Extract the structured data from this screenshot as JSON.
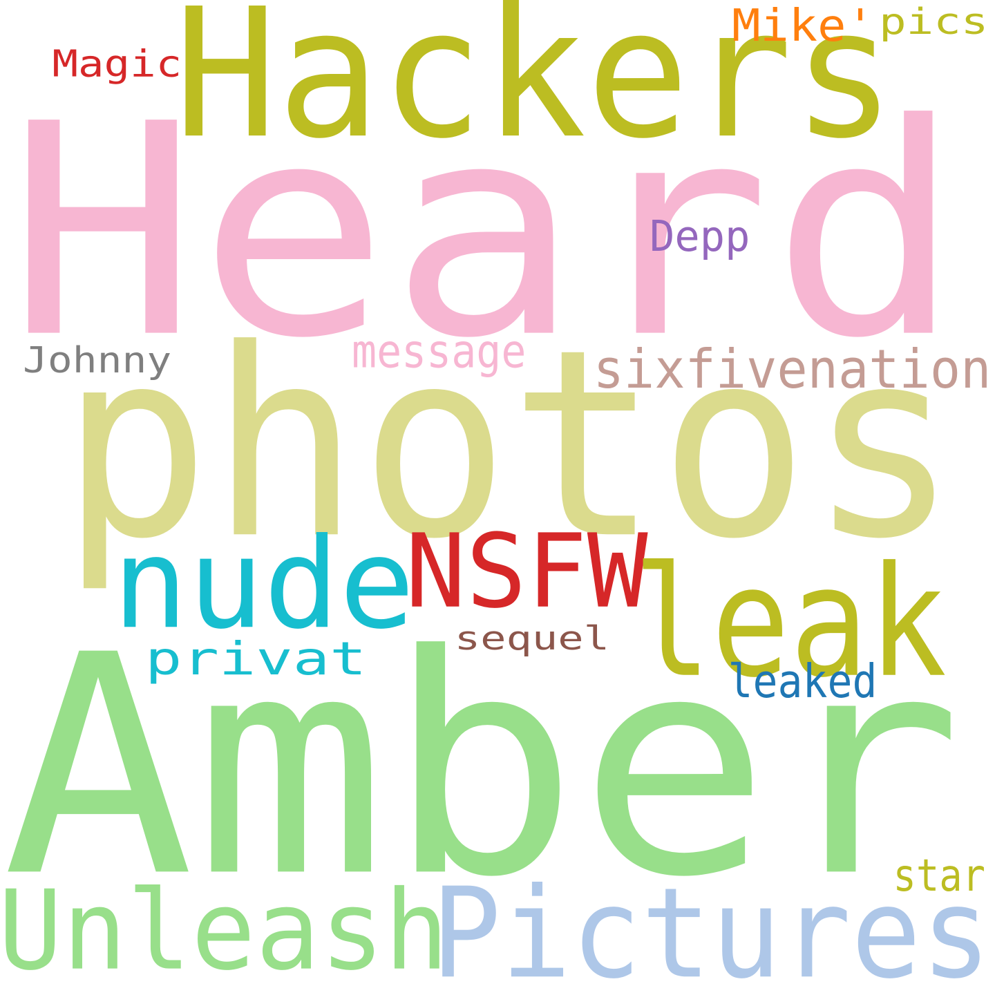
{
  "words": [
    {
      "id": "heard",
      "text": "Heard",
      "color": "#f7b6d2"
    },
    {
      "id": "hackers",
      "text": "Hackers",
      "color": "#bcbd22"
    },
    {
      "id": "photos",
      "text": "photos",
      "color": "#dbdb8d"
    },
    {
      "id": "amber",
      "text": "Amber",
      "color": "#98df8a"
    },
    {
      "id": "nude",
      "text": "nude",
      "color": "#17becf"
    },
    {
      "id": "nsfw",
      "text": "NSFW",
      "color": "#d62728"
    },
    {
      "id": "leak",
      "text": "leak",
      "color": "#bcbd22"
    },
    {
      "id": "unleash",
      "text": "Unleash",
      "color": "#98df8a"
    },
    {
      "id": "pictures",
      "text": "Pictures",
      "color": "#aec7e8"
    },
    {
      "id": "mike",
      "text": "Mike'",
      "color": "#ff7f0e"
    },
    {
      "id": "pics",
      "text": "pics",
      "color": "#bcbd22"
    },
    {
      "id": "magic",
      "text": "Magic",
      "color": "#d62728"
    },
    {
      "id": "depp",
      "text": "Depp",
      "color": "#9467bd"
    },
    {
      "id": "johnny",
      "text": "Johnny",
      "color": "#7f7f7f"
    },
    {
      "id": "message",
      "text": "message",
      "color": "#f7b6d2"
    },
    {
      "id": "sixfivenation",
      "text": "sixfivenation",
      "color": "#c49c94"
    },
    {
      "id": "privat",
      "text": "privat",
      "color": "#17becf"
    },
    {
      "id": "sequel",
      "text": "sequel",
      "color": "#8c564b"
    },
    {
      "id": "leaked",
      "text": "leaked",
      "color": "#1f77b4"
    },
    {
      "id": "star",
      "text": "star",
      "color": "#bcbd22"
    }
  ]
}
